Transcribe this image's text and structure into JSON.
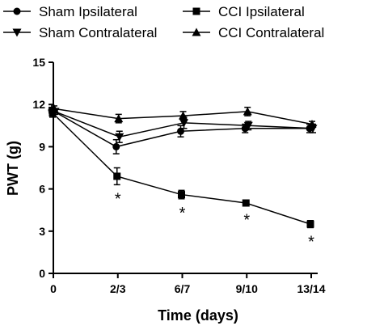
{
  "chart_data": {
    "type": "line",
    "xlabel": "Time (days)",
    "ylabel": "PWT (g)",
    "categories": [
      "0",
      "2/3",
      "6/7",
      "9/10",
      "13/14"
    ],
    "ylim": [
      0,
      15
    ],
    "yticks": [
      0,
      3,
      6,
      9,
      12,
      15
    ],
    "grid": false,
    "legend_position": "top",
    "series": [
      {
        "name": "Sham Ipsilateral",
        "marker": "circle",
        "values": [
          11.6,
          9.0,
          10.1,
          10.3,
          10.3
        ],
        "errors": [
          0.2,
          0.5,
          0.4,
          0.3,
          0.3
        ]
      },
      {
        "name": "Sham Contralateral",
        "marker": "triangle-down",
        "values": [
          11.5,
          9.7,
          10.7,
          10.5,
          10.3
        ],
        "errors": [
          0.2,
          0.4,
          0.4,
          0.3,
          0.3
        ]
      },
      {
        "name": "CCI Ipsilateral",
        "marker": "square",
        "values": [
          11.4,
          6.9,
          5.6,
          5.0,
          3.5
        ],
        "errors": [
          0.3,
          0.6,
          0.3,
          0.2,
          0.25
        ]
      },
      {
        "name": "CCI Contralateral",
        "marker": "triangle-up",
        "values": [
          11.7,
          11.0,
          11.2,
          11.5,
          10.6
        ],
        "errors": [
          0.2,
          0.3,
          0.3,
          0.3,
          0.2
        ]
      }
    ],
    "annotations": [
      {
        "text": "*",
        "category": "2/3"
      },
      {
        "text": "*",
        "category": "6/7"
      },
      {
        "text": "*",
        "category": "9/10"
      },
      {
        "text": "*",
        "category": "13/14"
      }
    ],
    "colors": {
      "line": "#000000",
      "background": "#ffffff"
    }
  }
}
